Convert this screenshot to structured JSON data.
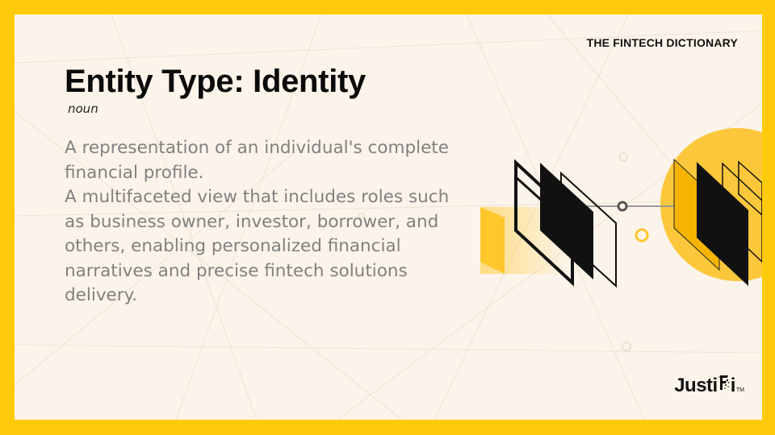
{
  "header": {
    "label": "THE FINTECH DICTIONARY"
  },
  "term": {
    "title": "Entity Type: Identity",
    "part_of_speech": "noun"
  },
  "definition": {
    "sentence_1": "A representation of an individual's complete financial profile.",
    "sentence_2": "A multifaceted view that includes roles such as business owner, investor, borrower, and others, enabling personalized financial narratives and precise fintech solutions delivery."
  },
  "brand": {
    "logo_before": "Justi",
    "logo_after": "i",
    "trademark": "TM"
  },
  "colors": {
    "frame": "#ffca0a",
    "card": "#fcf4ea",
    "title": "#0a0a0a",
    "body_text": "#808080",
    "accent": "#ffc72c"
  },
  "icons": {
    "illustration": "layered-screens-illustration",
    "logo_mark": "dna-f-icon"
  }
}
